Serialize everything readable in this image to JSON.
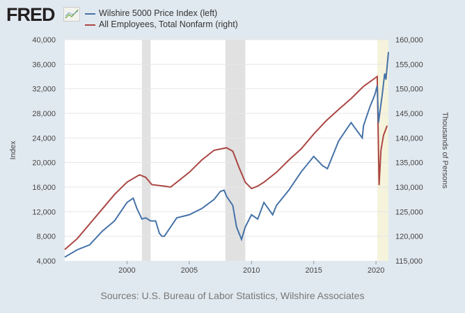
{
  "header": {
    "logo": "FRED",
    "logo_icon": "chart-line-icon"
  },
  "source": "Sources: U.S. Bureau of Labor Statistics, Wilshire Associates",
  "chart_data": {
    "type": "line",
    "xlim": [
      1995.0,
      2021.0
    ],
    "x_ticks": [
      2000,
      2005,
      2010,
      2015,
      2020
    ],
    "ylabel_left": "Index",
    "ylim_left": [
      4000,
      40000
    ],
    "y_ticks_left": [
      "4,000",
      "8,000",
      "12,000",
      "16,000",
      "20,000",
      "24,000",
      "28,000",
      "32,000",
      "36,000",
      "40,000"
    ],
    "ylabel_right": "Thousands of Persons",
    "ylim_right": [
      115000,
      160000
    ],
    "y_ticks_right": [
      "115,000",
      "120,000",
      "125,000",
      "130,000",
      "135,000",
      "140,000",
      "145,000",
      "150,000",
      "155,000",
      "160,000"
    ],
    "grid": true,
    "legend": "top-left",
    "recessions": [
      [
        2001.2,
        2001.9
      ],
      [
        2007.9,
        2009.5
      ]
    ],
    "highlight": [
      [
        2020.1,
        2021.0
      ]
    ],
    "colors": {
      "left": "#4572a7",
      "right": "#aa4643",
      "recession": "#e1e1e1",
      "highlight": "#f5f3dc"
    },
    "series": [
      {
        "name": "Wilshire 5000 Price Index (left)",
        "axis": "left",
        "x": [
          1995.0,
          1996,
          1997,
          1998,
          1999,
          1999.5,
          2000,
          2000.5,
          2000.8,
          2001.2,
          2001.5,
          2001.9,
          2002.3,
          2002.6,
          2002.8,
          2003,
          2003.5,
          2004,
          2005,
          2006,
          2007,
          2007.5,
          2007.8,
          2008,
          2008.5,
          2008.8,
          2009.2,
          2009.5,
          2010,
          2010.5,
          2011,
          2011.7,
          2012,
          2013,
          2014,
          2015,
          2015.7,
          2016.1,
          2016.5,
          2017,
          2018,
          2018.9,
          2019,
          2019.5,
          2019.9,
          2020.1,
          2020.2,
          2020.5,
          2020.7,
          2020.8,
          2021.0
        ],
        "y": [
          4600,
          5800,
          6600,
          8800,
          10500,
          12000,
          13500,
          14200,
          12500,
          10800,
          11000,
          10500,
          10500,
          8500,
          8000,
          8000,
          9500,
          11000,
          11500,
          12500,
          14000,
          15300,
          15500,
          14500,
          13000,
          9500,
          7500,
          9500,
          11500,
          10800,
          13500,
          11500,
          13000,
          15500,
          18500,
          21000,
          19500,
          19000,
          21000,
          23500,
          26500,
          24000,
          26000,
          29000,
          31000,
          32500,
          26500,
          31000,
          34500,
          33500,
          38000
        ]
      },
      {
        "name": "All Employees, Total Nonfarm (right)",
        "axis": "right",
        "x": [
          1995.0,
          1996,
          1997,
          1998,
          1999,
          2000,
          2001,
          2001.5,
          2002,
          2003,
          2003.5,
          2004,
          2005,
          2006,
          2007,
          2008,
          2008.5,
          2009,
          2009.5,
          2010,
          2010.5,
          2011,
          2012,
          2013,
          2014,
          2015,
          2016,
          2017,
          2018,
          2019,
          2020.1,
          2020.25,
          2020.4,
          2020.6,
          2020.9
        ],
        "y": [
          117300,
          119500,
          122500,
          125500,
          128500,
          131000,
          132500,
          132000,
          130500,
          130200,
          130000,
          131000,
          133000,
          135500,
          137500,
          138000,
          137300,
          134000,
          131000,
          129700,
          130200,
          131000,
          133000,
          135500,
          137800,
          140800,
          143500,
          145800,
          148000,
          150500,
          152500,
          130400,
          137500,
          140500,
          142500
        ]
      }
    ]
  }
}
